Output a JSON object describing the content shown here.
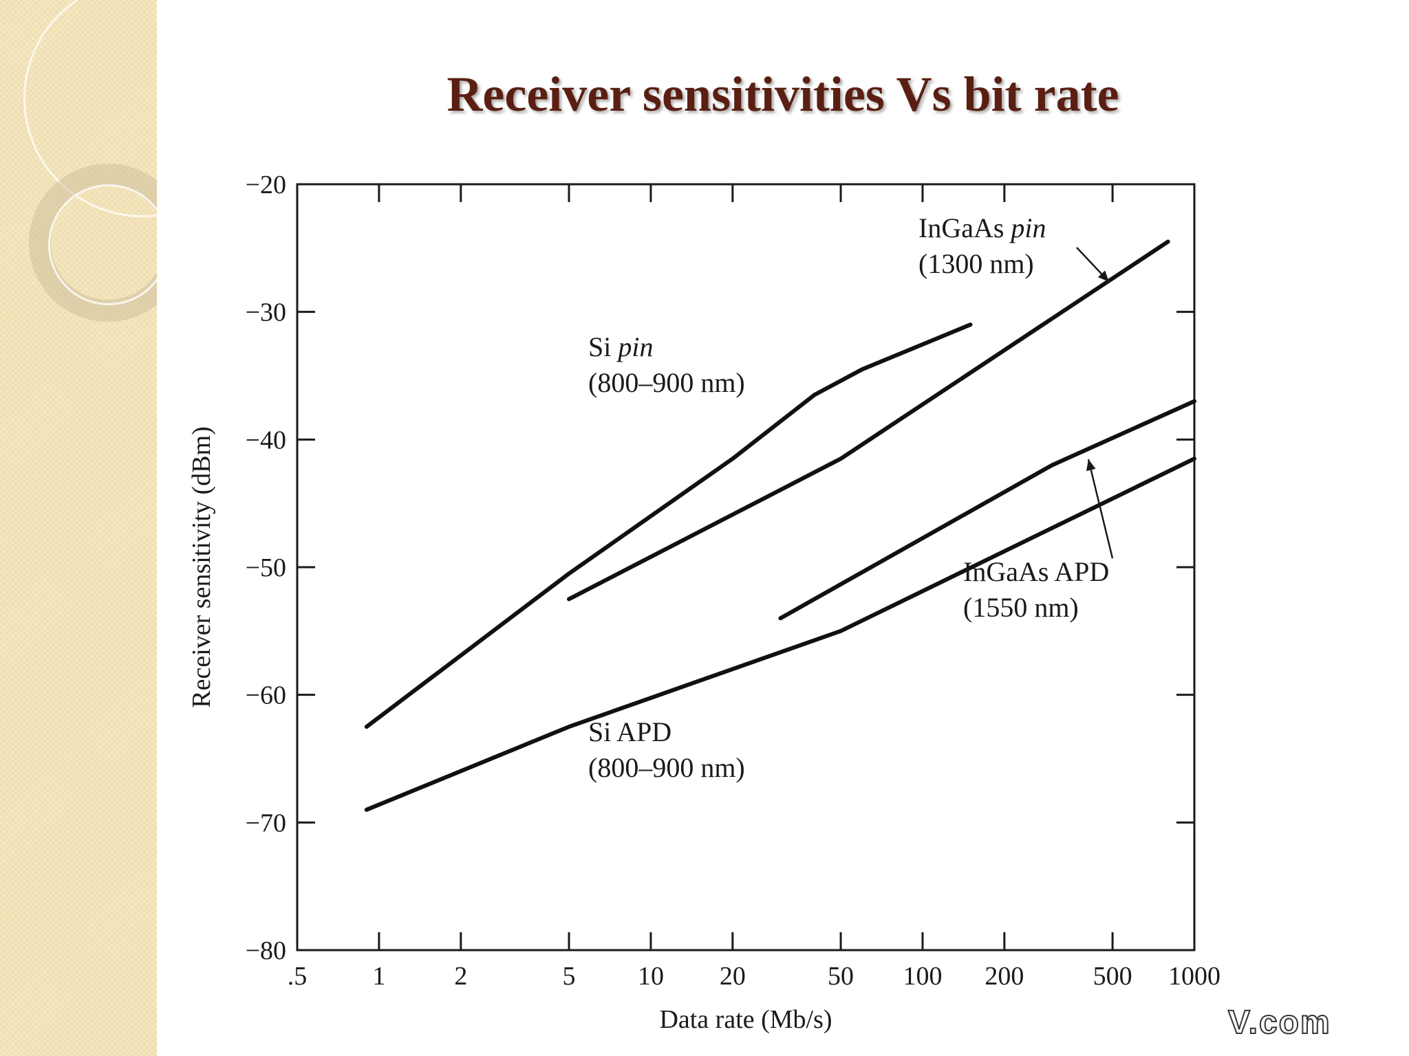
{
  "slide": {
    "title": "Receiver sensitivities Vs bit rate",
    "watermark": "V.com"
  },
  "colors": {
    "title": "#5a1f12",
    "sidebar": "#f3e3b8",
    "ink": "#1a1a1a"
  },
  "chart_data": {
    "type": "line",
    "xlabel": "Data rate (Mb/s)",
    "ylabel": "Receiver sensitivity (dBm)",
    "xscale": "log",
    "xlim": [
      0.5,
      1000
    ],
    "ylim": [
      -80,
      -20
    ],
    "xticks": [
      0.5,
      1,
      2,
      5,
      10,
      20,
      50,
      100,
      200,
      500,
      1000
    ],
    "xtick_labels": [
      ".5",
      "1",
      "2",
      "5",
      "10",
      "20",
      "50",
      "100",
      "200",
      "500",
      "1000"
    ],
    "yticks": [
      -20,
      -30,
      -40,
      -50,
      -60,
      -70,
      -80
    ],
    "ytick_labels": [
      "−20",
      "−30",
      "−40",
      "−50",
      "−60",
      "−70",
      "−80"
    ],
    "grid": false,
    "series": [
      {
        "name": "Si pin",
        "sublabel": "(800–900 nm)",
        "x": [
          0.9,
          5,
          20,
          40,
          60,
          150
        ],
        "y": [
          -62.5,
          -50.5,
          -41.5,
          -36.5,
          -34.5,
          -31
        ]
      },
      {
        "name": "InGaAs pin",
        "sublabel": "(1300 nm)",
        "x": [
          5,
          50,
          800
        ],
        "y": [
          -52.5,
          -41.5,
          -24.5
        ]
      },
      {
        "name": "InGaAs APD",
        "sublabel": "(1550 nm)",
        "x": [
          30,
          300,
          1000
        ],
        "y": [
          -54,
          -42,
          -37
        ]
      },
      {
        "name": "Si APD",
        "sublabel": "(800–900 nm)",
        "x": [
          0.9,
          5,
          50,
          1000
        ],
        "y": [
          -69,
          -62.5,
          -55,
          -41.5
        ]
      }
    ]
  }
}
